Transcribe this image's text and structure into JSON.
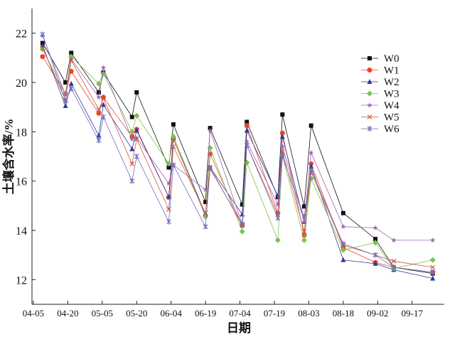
{
  "chart_data": {
    "type": "line",
    "title": "",
    "xlabel": "日期",
    "ylabel": "土壤含水率/%",
    "xlim": [
      -0.6,
      179
    ],
    "ylim": [
      11,
      23
    ],
    "x_ticks": [
      0,
      15,
      30,
      45,
      60,
      75,
      90,
      105,
      120,
      135,
      150,
      165
    ],
    "x_tick_labels": [
      "04-05",
      "04-20",
      "05-05",
      "05-20",
      "06-04",
      "06-19",
      "07-04",
      "07-19",
      "08-03",
      "08-18",
      "09-02",
      "09-17"
    ],
    "y_ticks": [
      12,
      14,
      16,
      18,
      20,
      22
    ],
    "y_tick_labels": [
      "12",
      "14",
      "16",
      "18",
      "20",
      "22"
    ],
    "grid": false,
    "legend_position": "top-right",
    "x": [
      4,
      14,
      16.5,
      28.5,
      30.5,
      43,
      45,
      59,
      61,
      75,
      77,
      91,
      93,
      106.5,
      108.5,
      118,
      121,
      135,
      149,
      157,
      174
    ],
    "series": [
      {
        "name": "W0",
        "color": "#111111",
        "marker": "square",
        "values": [
          21.6,
          20.0,
          21.2,
          19.6,
          20.4,
          18.6,
          19.6,
          16.55,
          18.3,
          15.15,
          18.15,
          15.05,
          18.4,
          15.35,
          18.7,
          14.97,
          18.25,
          14.7,
          13.65,
          12.5,
          12.25
        ]
      },
      {
        "name": "W1",
        "color": "#e8452a",
        "marker": "circle",
        "values": [
          21.05,
          19.55,
          20.45,
          18.75,
          19.4,
          17.8,
          18.1,
          15.35,
          17.7,
          14.6,
          17.1,
          14.2,
          18.25,
          14.7,
          17.95,
          13.8,
          16.7,
          13.3,
          12.7,
          12.5,
          12.3
        ]
      },
      {
        "name": "W2",
        "color": "#2e3a9a",
        "marker": "triangle",
        "values": [
          21.5,
          19.05,
          19.95,
          17.85,
          19.1,
          17.3,
          18.05,
          15.35,
          17.8,
          14.65,
          16.55,
          14.65,
          18.05,
          15.4,
          17.8,
          14.35,
          16.6,
          12.8,
          12.65,
          12.4,
          12.05
        ]
      },
      {
        "name": "W3",
        "color": "#7cc24a",
        "marker": "diamond",
        "values": [
          21.35,
          19.55,
          21.05,
          19.95,
          20.35,
          18.0,
          18.65,
          16.7,
          17.8,
          14.55,
          17.35,
          13.95,
          16.75,
          13.6,
          17.05,
          13.6,
          16.1,
          13.2,
          13.5,
          12.45,
          12.8
        ]
      },
      {
        "name": "W4",
        "color": "#a064b4",
        "marker": "star",
        "values": [
          21.9,
          19.5,
          20.95,
          19.4,
          20.6,
          17.7,
          17.75,
          15.9,
          16.65,
          15.65,
          18.05,
          14.25,
          17.6,
          15.05,
          17.4,
          14.35,
          17.15,
          14.15,
          14.1,
          13.6,
          13.6
        ]
      },
      {
        "name": "W5",
        "color": "#d0533a",
        "marker": "x",
        "values": [
          21.4,
          19.3,
          20.9,
          18.9,
          19.35,
          16.7,
          17.7,
          14.85,
          17.4,
          14.7,
          16.55,
          14.2,
          17.45,
          14.65,
          17.2,
          13.95,
          16.35,
          13.4,
          13.0,
          12.75,
          12.5
        ]
      },
      {
        "name": "W6",
        "color": "#6a6fc0",
        "marker": "asterisk",
        "values": [
          21.95,
          19.25,
          19.75,
          17.65,
          18.6,
          16.0,
          17.0,
          14.35,
          16.65,
          14.15,
          16.5,
          14.25,
          17.45,
          14.5,
          17.0,
          14.55,
          16.45,
          13.45,
          13.0,
          12.5,
          12.3
        ]
      }
    ]
  }
}
